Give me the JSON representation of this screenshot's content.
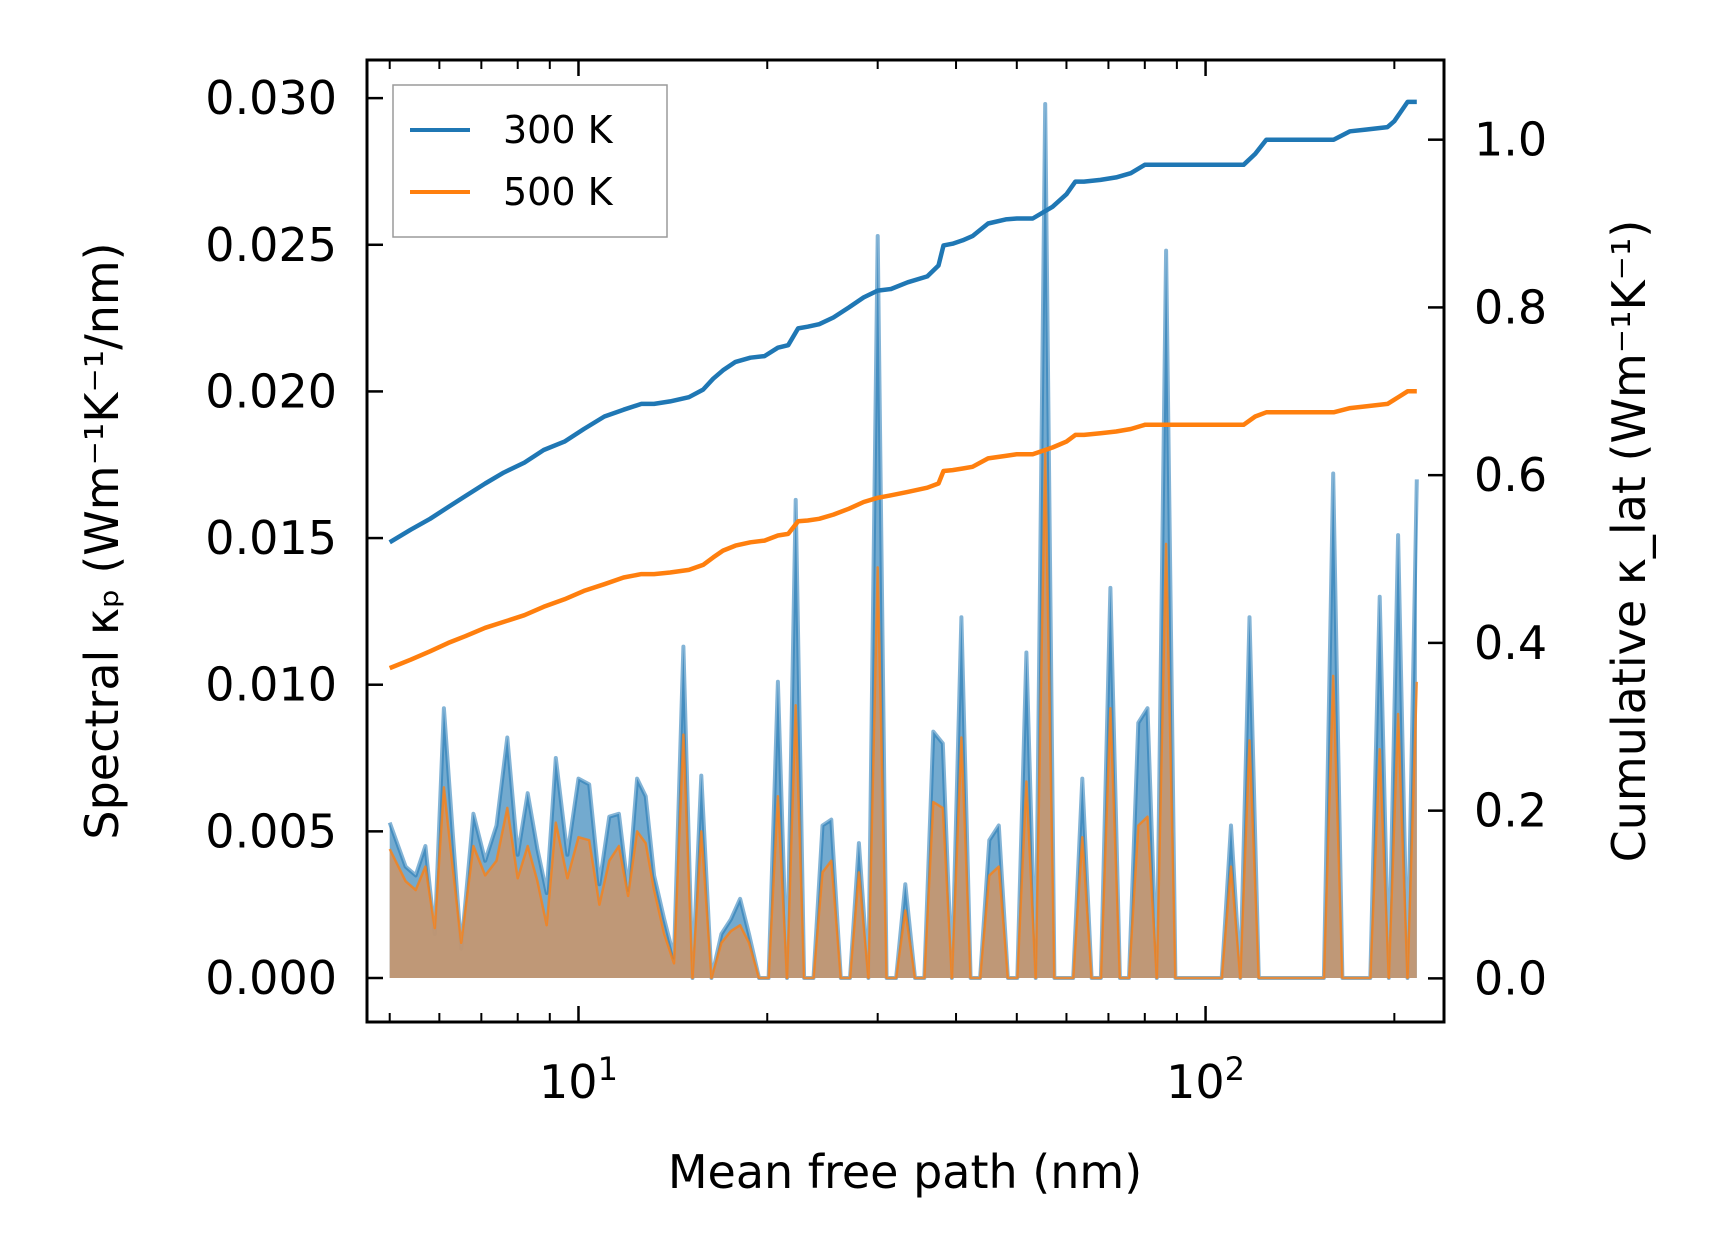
{
  "chart_data": {
    "type": "line",
    "x_scale": "log",
    "xlim": [
      4.6,
      240
    ],
    "ylim_left": [
      -0.0015,
      0.0313
    ],
    "ylim_right": [
      -0.052,
      1.095
    ],
    "xlabel": "Mean free path (nm)",
    "ylabel_left": "Spectral κₚ (Wm⁻¹K⁻¹/nm)",
    "ylabel_right": "Cumulative κ_lat (Wm⁻¹K⁻¹)",
    "x_ticks": [
      {
        "value": 10,
        "base": "10",
        "exp": "1"
      },
      {
        "value": 100,
        "base": "10",
        "exp": "2"
      }
    ],
    "y_ticks_left": [
      0.0,
      0.005,
      0.01,
      0.015,
      0.02,
      0.025,
      0.03
    ],
    "y_tick_labels_left": [
      "0.000",
      "0.005",
      "0.010",
      "0.015",
      "0.020",
      "0.025",
      "0.030"
    ],
    "y_ticks_right": [
      0.0,
      0.2,
      0.4,
      0.6,
      0.8,
      1.0
    ],
    "y_tick_labels_right": [
      "0.0",
      "0.2",
      "0.4",
      "0.6",
      "0.8",
      "1.0"
    ],
    "legend": {
      "position": "top-left",
      "entries": [
        "300 K",
        "500 K"
      ]
    },
    "colors": {
      "300 K": "#1f77b4",
      "500 K": "#ff7f0e",
      "fill_300": "#5b9bc7",
      "fill_500": "#c39772"
    },
    "spectral_x": [
      5.0,
      5.3,
      5.5,
      5.7,
      5.9,
      6.1,
      6.3,
      6.5,
      6.8,
      7.1,
      7.4,
      7.7,
      8.0,
      8.3,
      8.6,
      8.9,
      9.2,
      9.6,
      10.0,
      10.4,
      10.8,
      11.2,
      11.6,
      12.0,
      12.4,
      12.8,
      13.2,
      13.7,
      14.2,
      14.7,
      15.2,
      15.7,
      16.3,
      16.9,
      17.5,
      18.1,
      18.7,
      19.4,
      20.1,
      20.8,
      21.5,
      22.2,
      22.9,
      23.7,
      24.5,
      25.3,
      26.2,
      27.1,
      28.0,
      29.0,
      30.0,
      31.0,
      32.1,
      33.2,
      34.4,
      35.6,
      36.8,
      38.1,
      39.4,
      40.8,
      42.2,
      43.7,
      45.2,
      46.8,
      48.4,
      50.1,
      51.8,
      53.6,
      55.5,
      57.4,
      59.4,
      61.5,
      63.6,
      65.8,
      68.1,
      70.5,
      73.0,
      75.5,
      78.1,
      80.8,
      83.6,
      86.5,
      89.5,
      92.6,
      95.8,
      99.1,
      102.5,
      106.1,
      109.8,
      113.6,
      117.5,
      121.6,
      125.8,
      130.2,
      134.7,
      139.4,
      144.2,
      149.2,
      154.4,
      159.8,
      165.3,
      171.0,
      177.0,
      183.1,
      189.5,
      196.0,
      202.8,
      209.9,
      217.2
    ],
    "spectral_300K": [
      0.0053,
      0.0038,
      0.0035,
      0.0045,
      0.0015,
      0.0092,
      0.005,
      0.001,
      0.0056,
      0.004,
      0.0052,
      0.0082,
      0.0042,
      0.0063,
      0.0044,
      0.0029,
      0.0075,
      0.0042,
      0.0068,
      0.0066,
      0.0032,
      0.0055,
      0.0056,
      0.003,
      0.0068,
      0.0062,
      0.0035,
      0.002,
      0.0007,
      0.0113,
      0.0,
      0.0069,
      0.0,
      0.0015,
      0.002,
      0.0027,
      0.0015,
      0.0,
      0.0,
      0.0101,
      0.0,
      0.0163,
      0.0,
      0.0,
      0.0052,
      0.0054,
      0.0,
      0.0,
      0.0046,
      0.0,
      0.0253,
      0.0,
      0.0,
      0.0032,
      0.0,
      0.0,
      0.0084,
      0.008,
      0.0,
      0.0123,
      0.0,
      0.0,
      0.0047,
      0.0052,
      0.0,
      0.0,
      0.0111,
      0.0,
      0.0298,
      0.0,
      0.0,
      0.0,
      0.0068,
      0.0,
      0.0,
      0.0133,
      0.0,
      0.0,
      0.0087,
      0.0092,
      0.0,
      0.0248,
      0.0,
      0.0,
      0.0,
      0.0,
      0.0,
      0.0,
      0.0052,
      0.0,
      0.0123,
      0.0,
      0.0,
      0.0,
      0.0,
      0.0,
      0.0,
      0.0,
      0.0,
      0.0172,
      0.0,
      0.0,
      0.0,
      0.0,
      0.013,
      0.0,
      0.0151,
      0.0,
      0.017
    ],
    "spectral_500K": [
      0.0044,
      0.0033,
      0.003,
      0.0038,
      0.0017,
      0.0065,
      0.0038,
      0.0012,
      0.0045,
      0.0035,
      0.004,
      0.0058,
      0.0034,
      0.0045,
      0.0033,
      0.0018,
      0.0053,
      0.0034,
      0.0048,
      0.0047,
      0.0025,
      0.004,
      0.0045,
      0.0028,
      0.005,
      0.0046,
      0.003,
      0.0015,
      0.0005,
      0.0083,
      0.0,
      0.005,
      0.0,
      0.0012,
      0.0016,
      0.0018,
      0.0012,
      0.0,
      0.0,
      0.0062,
      0.0,
      0.0093,
      0.0,
      0.0,
      0.0036,
      0.004,
      0.0,
      0.0,
      0.0036,
      0.0,
      0.014,
      0.0,
      0.0,
      0.0023,
      0.0,
      0.0,
      0.006,
      0.0058,
      0.0,
      0.0082,
      0.0,
      0.0,
      0.0035,
      0.0038,
      0.0,
      0.0,
      0.0067,
      0.0,
      0.0179,
      0.0,
      0.0,
      0.0,
      0.0048,
      0.0,
      0.0,
      0.0092,
      0.0,
      0.0,
      0.0052,
      0.0055,
      0.0,
      0.0148,
      0.0,
      0.0,
      0.0,
      0.0,
      0.0,
      0.0,
      0.0038,
      0.0,
      0.0081,
      0.0,
      0.0,
      0.0,
      0.0,
      0.0,
      0.0,
      0.0,
      0.0,
      0.0103,
      0.0,
      0.0,
      0.0,
      0.0,
      0.0078,
      0.0,
      0.009,
      0.0,
      0.0101
    ],
    "cumulative_x": [
      5.0,
      5.4,
      5.8,
      6.2,
      6.6,
      7.1,
      7.6,
      8.2,
      8.8,
      9.5,
      10.2,
      11.0,
      11.8,
      12.6,
      13.2,
      14.0,
      15.0,
      15.8,
      16.4,
      17.0,
      17.8,
      18.8,
      19.8,
      20.8,
      21.6,
      22.4,
      23.2,
      24.2,
      25.5,
      27.0,
      28.5,
      30.0,
      31.5,
      33.5,
      36.0,
      37.5,
      38.2,
      39.5,
      41.0,
      42.5,
      45.0,
      48.0,
      50.0,
      53.0,
      57.0,
      60.0,
      62.0,
      64.0,
      68.0,
      72.0,
      76.0,
      80.0,
      86.0,
      95.0,
      105.0,
      115.0,
      120.0,
      125.0,
      140.0,
      150.0,
      160.0,
      170.0,
      180.0,
      195.0,
      200.0,
      210.0,
      217.2
    ],
    "cumulative_300K": [
      0.52,
      0.535,
      0.548,
      0.562,
      0.575,
      0.59,
      0.603,
      0.615,
      0.63,
      0.64,
      0.655,
      0.67,
      0.678,
      0.685,
      0.685,
      0.688,
      0.693,
      0.702,
      0.715,
      0.725,
      0.735,
      0.74,
      0.742,
      0.752,
      0.755,
      0.775,
      0.777,
      0.78,
      0.788,
      0.8,
      0.812,
      0.82,
      0.822,
      0.83,
      0.837,
      0.85,
      0.874,
      0.876,
      0.88,
      0.885,
      0.9,
      0.905,
      0.906,
      0.906,
      0.92,
      0.935,
      0.95,
      0.95,
      0.952,
      0.955,
      0.96,
      0.97,
      0.97,
      0.97,
      0.97,
      0.97,
      0.983,
      1.0,
      1.0,
      1.0,
      1.0,
      1.01,
      1.012,
      1.015,
      1.022,
      1.045,
      1.045
    ],
    "cumulative_500K": [
      0.37,
      0.38,
      0.39,
      0.4,
      0.408,
      0.418,
      0.425,
      0.433,
      0.443,
      0.452,
      0.462,
      0.47,
      0.478,
      0.482,
      0.482,
      0.484,
      0.487,
      0.493,
      0.502,
      0.51,
      0.516,
      0.52,
      0.522,
      0.528,
      0.53,
      0.545,
      0.546,
      0.548,
      0.553,
      0.56,
      0.568,
      0.573,
      0.576,
      0.58,
      0.585,
      0.59,
      0.605,
      0.606,
      0.608,
      0.61,
      0.62,
      0.623,
      0.625,
      0.625,
      0.633,
      0.64,
      0.648,
      0.648,
      0.65,
      0.652,
      0.655,
      0.66,
      0.66,
      0.66,
      0.66,
      0.66,
      0.67,
      0.675,
      0.675,
      0.675,
      0.675,
      0.68,
      0.682,
      0.685,
      0.69,
      0.7,
      0.7
    ]
  }
}
